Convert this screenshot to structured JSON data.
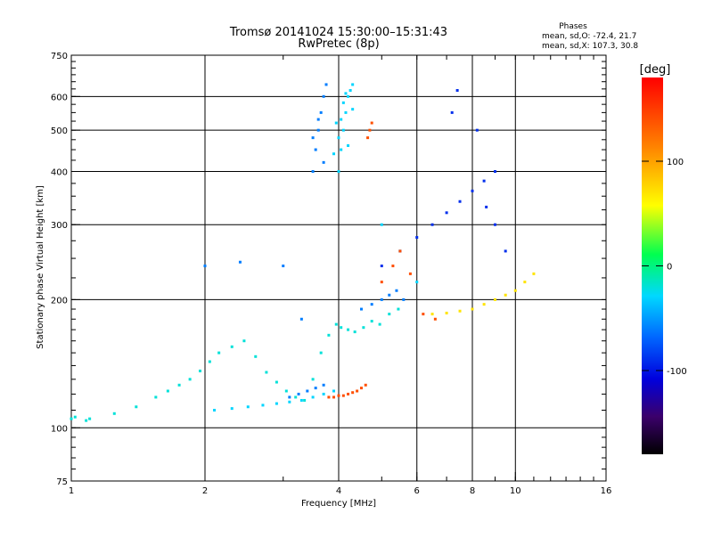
{
  "title": {
    "line1": "Tromsø 20141024 15:30:00–15:31:43",
    "line2": "RwPretec (8p)"
  },
  "stats": {
    "label": "Phases",
    "line_o": "mean, sd,O: -72.4, 21.7",
    "line_x": "mean, sd,X: 107.3, 30.8",
    "mean_o": -72.4,
    "sd_o": 21.7,
    "mean_x": 107.3,
    "sd_x": 30.8
  },
  "chart_data": {
    "type": "scatter",
    "xlabel": "Frequency [MHz]",
    "ylabel": "Stationary phase Virtual Height [km]",
    "x_scale": "log",
    "y_scale": "log",
    "xlim": [
      1,
      16
    ],
    "ylim": [
      75,
      750
    ],
    "x_ticks": [
      1,
      2,
      4,
      6,
      8,
      10,
      16
    ],
    "x_tick_labels": [
      "1",
      "2",
      "4",
      "6",
      "8",
      "10",
      "16"
    ],
    "y_ticks": [
      75,
      100,
      200,
      300,
      400,
      500,
      600,
      750
    ],
    "y_tick_labels": [
      "75",
      "100",
      "200",
      "300",
      "400",
      "500",
      "600",
      "750"
    ],
    "x_gridlines": [
      2,
      4,
      6,
      8,
      10
    ],
    "y_gridlines": [
      100,
      200,
      300,
      400,
      500,
      600
    ],
    "grid": true,
    "colorbar": {
      "label": "[deg]",
      "range": [
        -180,
        180
      ],
      "ticks": [
        100,
        0,
        -100
      ],
      "tick_labels": [
        "100",
        "0",
        "-100"
      ],
      "colors": [
        "#000000",
        "#3b006b",
        "#0000dd",
        "#0066ff",
        "#00d8ff",
        "#00ff50",
        "#ffff00",
        "#ff8000",
        "#ff0000"
      ]
    },
    "series": [
      {
        "phase": -20,
        "x": [
          1.0,
          1.02,
          1.08,
          1.1,
          1.25,
          1.4,
          1.55,
          1.65,
          1.75,
          1.85,
          1.95,
          2.05,
          2.15,
          2.3,
          2.45,
          2.6,
          2.75,
          2.9,
          3.05,
          3.2,
          3.35,
          3.5,
          3.65,
          3.8,
          3.95,
          4.05,
          4.2,
          4.35,
          4.55,
          4.75,
          4.95,
          5.2,
          5.45
        ],
        "y": [
          105,
          106,
          104,
          105,
          108,
          112,
          118,
          122,
          126,
          130,
          136,
          143,
          150,
          155,
          160,
          147,
          135,
          128,
          122,
          118,
          116,
          130,
          150,
          165,
          175,
          172,
          170,
          168,
          172,
          178,
          175,
          185,
          190
        ]
      },
      {
        "phase": -30,
        "x": [
          2.1,
          2.3,
          2.5,
          2.7,
          2.9,
          3.1,
          3.3,
          3.5,
          3.7,
          3.9,
          4.0,
          4.05,
          4.1,
          4.15,
          4.2,
          4.25,
          4.3,
          4.0,
          3.95,
          4.05,
          4.1,
          4.15,
          3.9,
          4.2,
          4.3,
          5.0,
          5.5,
          6.0
        ],
        "y": [
          110,
          111,
          112,
          113,
          114,
          115,
          116,
          118,
          120,
          122,
          400,
          450,
          500,
          550,
          600,
          620,
          640,
          480,
          520,
          530,
          580,
          610,
          440,
          460,
          560,
          300,
          260,
          220
        ]
      },
      {
        "phase": -60,
        "x": [
          3.1,
          3.25,
          3.4,
          3.55,
          3.7,
          3.5,
          3.55,
          3.6,
          3.65,
          3.7,
          3.75,
          3.5,
          3.6,
          3.7,
          4.5,
          4.75,
          5.0,
          5.2,
          5.4,
          5.6,
          2.0,
          2.4,
          3.0,
          3.3
        ],
        "y": [
          118,
          120,
          122,
          124,
          126,
          400,
          450,
          500,
          550,
          600,
          640,
          480,
          530,
          420,
          190,
          195,
          200,
          205,
          210,
          200,
          240,
          245,
          240,
          180
        ]
      },
      {
        "phase": -90,
        "x": [
          5.0,
          5.5,
          6.0,
          6.5,
          7.0,
          7.5,
          8.0,
          8.5,
          9.0,
          9.5,
          7.2,
          7.4,
          8.2,
          8.6,
          9.0
        ],
        "y": [
          240,
          260,
          280,
          300,
          320,
          340,
          360,
          380,
          300,
          260,
          550,
          620,
          500,
          330,
          400
        ]
      },
      {
        "phase": 70,
        "x": [
          6.5,
          7.0,
          7.5,
          8.0,
          8.5,
          9.0,
          9.5,
          10.0,
          10.5,
          11.0
        ],
        "y": [
          185,
          186,
          188,
          190,
          195,
          200,
          205,
          210,
          220,
          230
        ]
      },
      {
        "phase": 140,
        "x": [
          3.8,
          3.9,
          4.0,
          4.1,
          4.2,
          4.3,
          4.4,
          4.5,
          4.6,
          4.65,
          4.7,
          4.75,
          5.0,
          5.3,
          5.5,
          5.8,
          6.2,
          6.6
        ],
        "y": [
          118,
          118,
          119,
          119,
          120,
          121,
          122,
          124,
          126,
          480,
          500,
          520,
          220,
          240,
          260,
          230,
          185,
          180
        ]
      }
    ]
  }
}
